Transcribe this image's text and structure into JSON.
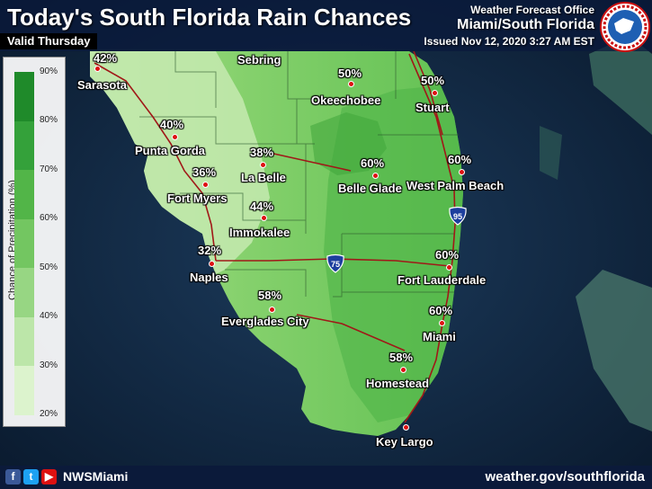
{
  "title": "Today's South Florida Rain Chances",
  "valid": "Valid Thursday",
  "office": {
    "line1": "Weather Forecast Office",
    "line2": "Miami/South Florida",
    "line3": "Issued Nov 12, 2020 3:27 AM EST"
  },
  "legend": {
    "title": "Chance of Precipitation (%)",
    "ticks": [
      "90%",
      "80%",
      "70%",
      "60%",
      "50%",
      "40%",
      "30%",
      "20%"
    ]
  },
  "cities": [
    {
      "name": "Sarasota",
      "pct": "42%"
    },
    {
      "name": "Sebring",
      "pct": ""
    },
    {
      "name": "Okeechobee",
      "pct": "50%"
    },
    {
      "name": "Stuart",
      "pct": "50%"
    },
    {
      "name": "Punta Gorda",
      "pct": "40%"
    },
    {
      "name": "La Belle",
      "pct": "38%"
    },
    {
      "name": "Fort Myers",
      "pct": "36%"
    },
    {
      "name": "Belle Glade",
      "pct": "60%"
    },
    {
      "name": "West Palm Beach",
      "pct": "60%"
    },
    {
      "name": "Immokalee",
      "pct": "44%"
    },
    {
      "name": "Naples",
      "pct": "32%"
    },
    {
      "name": "Fort Lauderdale",
      "pct": "60%"
    },
    {
      "name": "Everglades City",
      "pct": "58%"
    },
    {
      "name": "Miami",
      "pct": "60%"
    },
    {
      "name": "Homestead",
      "pct": "58%"
    },
    {
      "name": "Key Largo",
      "pct": ""
    }
  ],
  "highways": [
    "95",
    "75"
  ],
  "footer": {
    "handle": "NWSMiami",
    "site": "weather.gov/southflorida"
  },
  "colors": {
    "water": "#10263f",
    "low": "#e3f5d6",
    "mid": "#7ed067",
    "high": "#2f9a3a",
    "road": "#a01818"
  }
}
